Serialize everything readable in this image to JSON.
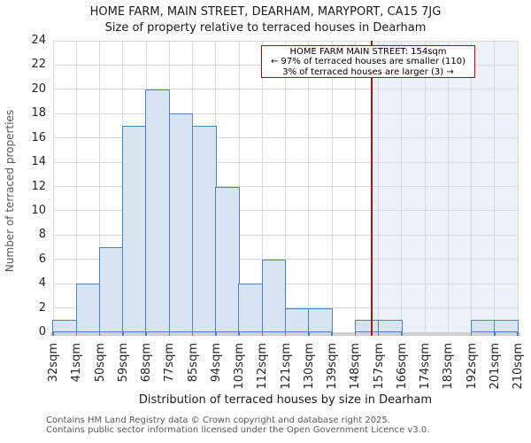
{
  "header": {
    "title": "HOME FARM, MAIN STREET, DEARHAM, MARYPORT, CA15 7JG",
    "subtitle": "Size of property relative to terraced houses in Dearham"
  },
  "chart_data": {
    "type": "bar",
    "title": "Size of property relative to terraced houses in Dearham",
    "xlabel": "Distribution of terraced houses by size in Dearham",
    "ylabel": "Number of terraced properties",
    "categories": [
      "32sqm",
      "41sqm",
      "50sqm",
      "59sqm",
      "68sqm",
      "77sqm",
      "85sqm",
      "94sqm",
      "103sqm",
      "112sqm",
      "121sqm",
      "130sqm",
      "139sqm",
      "148sqm",
      "157sqm",
      "166sqm",
      "174sqm",
      "183sqm",
      "192sqm",
      "201sqm",
      "210sqm"
    ],
    "values": [
      1,
      4,
      7,
      17,
      20,
      18,
      17,
      12,
      4,
      6,
      2,
      2,
      0,
      1,
      1,
      0,
      0,
      0,
      1,
      1
    ],
    "ylim": [
      0,
      24
    ],
    "yticks": [
      0,
      2,
      4,
      6,
      8,
      10,
      12,
      14,
      16,
      18,
      20,
      22,
      24
    ],
    "grid": true,
    "legend": "none",
    "marker": {
      "sqm": 154,
      "smaller_count": 110,
      "smaller_pct": "97%",
      "larger_count": 3,
      "larger_pct": "3%"
    }
  },
  "annotation": {
    "lines": [
      "HOME FARM MAIN STREET: 154sqm",
      "← 97% of terraced houses are smaller (110)",
      "3% of terraced houses are larger (3) →"
    ]
  },
  "footer": {
    "line1": "Contains HM Land Registry data © Crown copyright and database right 2025.",
    "line2": "Contains public sector information licensed under the Open Government Licence v3.0."
  },
  "colors": {
    "bar_fill": "#d9e4f2",
    "bar_border": "#4e81bd",
    "marker_line": "#b01212",
    "annotation_border": "#bb0000",
    "shaded_region": "#edf1fa",
    "grid": "#d9d9d9",
    "axis_band": "#d2d2d2"
  }
}
